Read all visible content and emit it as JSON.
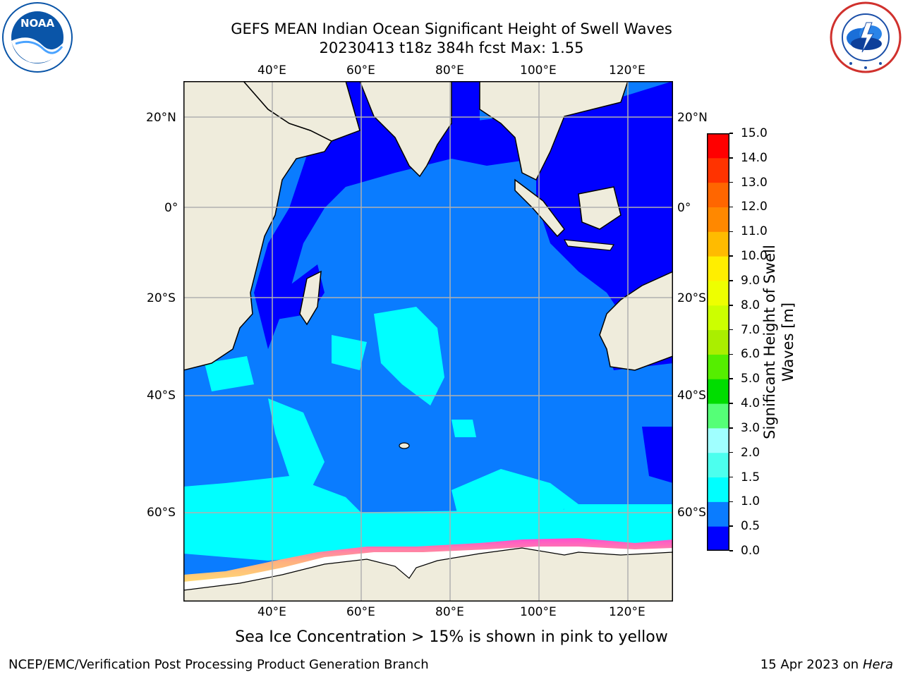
{
  "header": {
    "title_line1": "GEFS MEAN Indian Ocean Significant Height of Swell Waves",
    "title_line2": "20230413 t18z 384h fcst   Max: 1.55"
  },
  "logos": {
    "left": {
      "name": "NOAA",
      "ring_text": "NATIONAL OCEANIC AND ATMOSPHERIC ADMINISTRATION · U.S. DEPARTMENT OF COMMERCE",
      "color": "#0a55a8"
    },
    "right": {
      "name": "NATIONAL WEATHER SERVICE",
      "color": "#d0312d"
    }
  },
  "map": {
    "lon_ticks": [
      "40°E",
      "60°E",
      "80°E",
      "100°E",
      "120°E"
    ],
    "lat_ticks_left": [
      "20°N",
      "0°",
      "20°S",
      "40°S",
      "60°S"
    ],
    "lat_ticks_right": [
      "20°N",
      "0°",
      "20°S",
      "40°S",
      "60°S"
    ],
    "colors": {
      "land": "#efecdc",
      "ice_edge_low": "#ff4fd0",
      "ice_edge_high": "#ffd060",
      "grid": "#b0b0b0"
    }
  },
  "colorbar": {
    "label": "Significant Height of Swell Waves [m]",
    "label_line1": "Significant Height of Swell",
    "label_line2": "Waves [m]",
    "tick_labels": [
      "0.0",
      "0.5",
      "1.0",
      "1.5",
      "2.0",
      "3.0",
      "4.0",
      "5.0",
      "6.0",
      "7.0",
      "8.0",
      "9.0",
      "10.0",
      "11.0",
      "12.0",
      "13.0",
      "14.0",
      "15.0"
    ],
    "bins": [
      {
        "from": "0.0",
        "to": "0.5",
        "color": "#0000ff"
      },
      {
        "from": "0.5",
        "to": "1.0",
        "color": "#0a7cff"
      },
      {
        "from": "1.0",
        "to": "1.5",
        "color": "#00ffff"
      },
      {
        "from": "1.5",
        "to": "2.0",
        "color": "#4cffee"
      },
      {
        "from": "2.0",
        "to": "3.0",
        "color": "#a0ffff"
      },
      {
        "from": "3.0",
        "to": "4.0",
        "color": "#55ff77"
      },
      {
        "from": "4.0",
        "to": "5.0",
        "color": "#00dd00"
      },
      {
        "from": "5.0",
        "to": "6.0",
        "color": "#55ee00"
      },
      {
        "from": "6.0",
        "to": "7.0",
        "color": "#aaee00"
      },
      {
        "from": "7.0",
        "to": "8.0",
        "color": "#ccff00"
      },
      {
        "from": "8.0",
        "to": "9.0",
        "color": "#eeff00"
      },
      {
        "from": "9.0",
        "to": "10.0",
        "color": "#ffee00"
      },
      {
        "from": "10.0",
        "to": "11.0",
        "color": "#ffbb00"
      },
      {
        "from": "11.0",
        "to": "12.0",
        "color": "#ff8800"
      },
      {
        "from": "12.0",
        "to": "13.0",
        "color": "#ff6600"
      },
      {
        "from": "13.0",
        "to": "14.0",
        "color": "#ff3300"
      },
      {
        "from": "14.0",
        "to": "15.0",
        "color": "#ff0000"
      }
    ]
  },
  "caption": "Sea Ice Concentration > 15% is shown in pink to yellow",
  "footer": {
    "left": "NCEP/EMC/Verification Post Processing Product Generation Branch",
    "date": "15 Apr 2023 on ",
    "host": "Hera"
  }
}
